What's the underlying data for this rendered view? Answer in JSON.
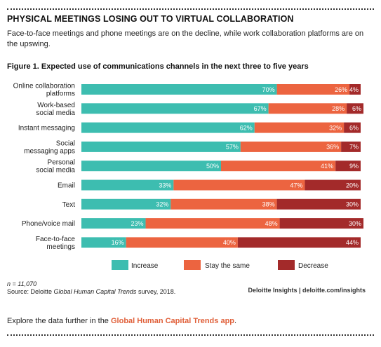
{
  "header": {
    "title": "PHYSICAL MEETINGS LOSING OUT TO VIRTUAL COLLABORATION",
    "subtitle": "Face-to-face meetings and phone meetings are on the decline, while work collaboration platforms are on the upswing."
  },
  "colors": {
    "increase": "#3dbdb0",
    "stay_the_same": "#ec6440",
    "decrease": "#a32a2a"
  },
  "chart_data": {
    "type": "bar",
    "orientation": "horizontal",
    "stacked": true,
    "percent_stacked": true,
    "title": "Figure 1. Expected use of communications channels in the next three to five years",
    "xlabel": "",
    "ylabel": "",
    "xlim": [
      0,
      100
    ],
    "grid": false,
    "legend_position": "bottom",
    "categories": [
      [
        "Online collaboration",
        "platforms"
      ],
      [
        "Work-based",
        "social media"
      ],
      [
        "Instant messaging"
      ],
      [
        "Social",
        "messaging apps"
      ],
      [
        "Personal",
        "social media"
      ],
      [
        "Email"
      ],
      [
        "Text"
      ],
      [
        "Phone/voice mail"
      ],
      [
        "Face-to-face",
        "meetings"
      ]
    ],
    "series": [
      {
        "name": "Increase",
        "color_key": "increase",
        "values": [
          70,
          67,
          62,
          57,
          50,
          33,
          32,
          23,
          16
        ]
      },
      {
        "name": "Stay the same",
        "color_key": "stay_the_same",
        "values": [
          26,
          28,
          32,
          36,
          41,
          47,
          38,
          48,
          40
        ]
      },
      {
        "name": "Decrease",
        "color_key": "decrease",
        "values": [
          4,
          6,
          6,
          7,
          9,
          20,
          30,
          30,
          44
        ]
      }
    ],
    "value_suffix": "%"
  },
  "footer": {
    "n": "n = 11,070",
    "source_prefix": "Source: Deloitte ",
    "source_italic": "Global Human Capital Trends",
    "source_suffix": " survey, 2018.",
    "credit": "Deloitte Insights | deloitte.com/insights",
    "explore_prefix": "Explore the data further in the ",
    "explore_link": "Global Human Capital Trends app",
    "explore_suffix": "."
  }
}
